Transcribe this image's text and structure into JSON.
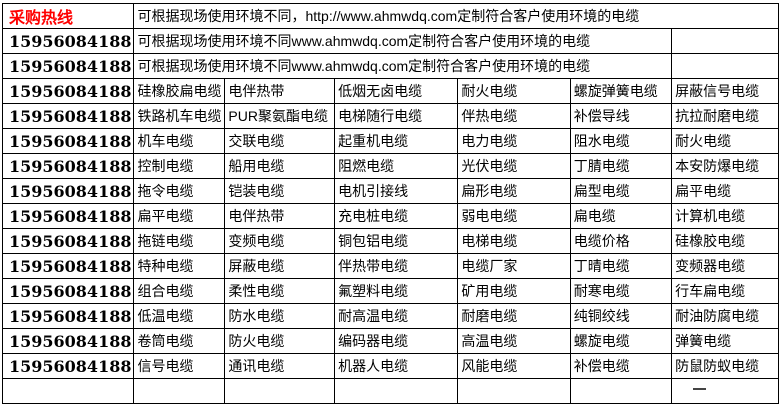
{
  "colors": {
    "hotline_red": "#ff0000",
    "border": "#000000",
    "background": "#ffffff",
    "text": "#000000"
  },
  "table": {
    "hotline_label": "采购热线",
    "phone_number": "15956084188",
    "notice_rows": [
      "可根据现场使用环境不同，http://www.ahmwdq.com定制符合客户使用环境的电缆",
      "可根据现场使用环境不同www.ahmwdq.com定制符合客户使用环境的电缆",
      "可根据现场使用环境不同www.ahmwdq.com定制符合客户使用环境的电缆"
    ],
    "website": "www.ahmwdq.com",
    "product_rows": [
      [
        "硅橡胶扁电缆",
        "电伴热带",
        "低烟无卤电缆",
        "耐火电缆",
        "螺旋弹簧电缆",
        "屏蔽信号电缆"
      ],
      [
        "铁路机车电缆",
        "PUR聚氨酯电缆",
        "电梯随行电缆",
        "伴热电缆",
        "补偿导线",
        "抗拉耐磨电缆"
      ],
      [
        "机车电缆",
        "交联电缆",
        "起重机电缆",
        "电力电缆",
        "阻水电缆",
        "耐火电缆"
      ],
      [
        "控制电缆",
        "船用电缆",
        "阻燃电缆",
        "光伏电缆",
        "丁腈电缆",
        "本安防爆电缆"
      ],
      [
        "拖令电缆",
        "铠装电缆",
        "电机引接线",
        "扁形电缆",
        "扁型电缆",
        "扁平电缆"
      ],
      [
        "扁平电缆",
        "电伴热带",
        "充电桩电缆",
        "弱电电缆",
        "扁电缆",
        "计算机电缆"
      ],
      [
        "拖链电缆",
        "变频电缆",
        "铜包铝电缆",
        "电梯电缆",
        "电缆价格",
        "硅橡胶电缆"
      ],
      [
        "特种电缆",
        "屏蔽电缆",
        "伴热带电缆",
        "电缆厂家",
        "丁晴电缆",
        "变频器电缆"
      ],
      [
        "组合电缆",
        "柔性电缆",
        "氟塑料电缆",
        "矿用电缆",
        "耐寒电缆",
        "行车扁电缆"
      ],
      [
        "低温电缆",
        "防水电缆",
        "耐高温电缆",
        "耐磨电缆",
        "纯铜绞线",
        "耐油防腐电缆"
      ],
      [
        "卷筒电缆",
        "防火电缆",
        "编码器电缆",
        "高温电缆",
        "螺旋电缆",
        "弹簧电缆"
      ],
      [
        "信号电缆",
        "通讯电缆",
        "机器人电缆",
        "风能电缆",
        "补偿电缆",
        "防鼠防蚁电缆"
      ]
    ]
  }
}
